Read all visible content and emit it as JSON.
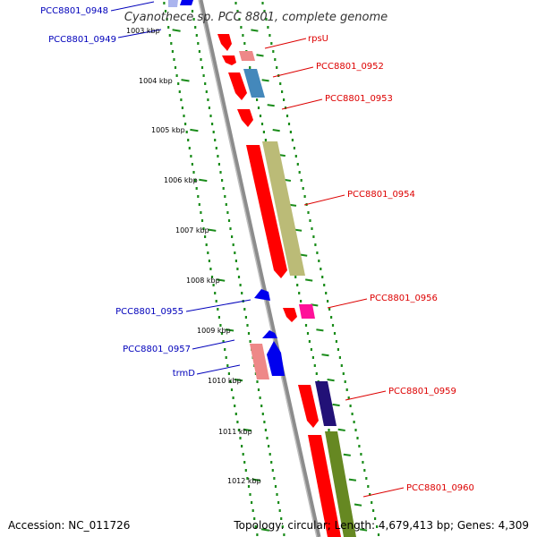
{
  "title": "Cyanothece sp. PCC 8801, complete genome",
  "accession_text": "Accession: NC_011726",
  "summary_text": "Topology: circular; Length: 4,679,413 bp; Genes: 4,309",
  "colors": {
    "backbone": "#8c8c8c",
    "track_dots": "#1a8c1a",
    "forward_label": "#dd0000",
    "reverse_label": "#0000bb",
    "gene_red": "#ff0000",
    "gene_pink": "#ee8888",
    "gene_blue": "#0000ee",
    "gene_steel": "#4488bb",
    "gene_olive": "#bbbb77",
    "gene_magenta": "#ff1199",
    "gene_navy": "#221177",
    "gene_green": "#668822"
  },
  "scale": {
    "unit": "kbp",
    "ticks": [
      "1003 kbp",
      "1004 kbp",
      "1005 kbp",
      "1006 kbp",
      "1007 kbp",
      "1008 kbp",
      "1009 kbp",
      "1010 kbp",
      "1011 kbp",
      "1012 kbp"
    ]
  },
  "forward_labels": [
    "rpsU",
    "PCC8801_0952",
    "PCC8801_0953",
    "PCC8801_0954",
    "PCC8801_0956",
    "PCC8801_0959",
    "PCC8801_0960"
  ],
  "reverse_labels": [
    "PCC8801_0948",
    "PCC8801_0949",
    "PCC8801_0955",
    "PCC8801_0957",
    "trmD"
  ]
}
